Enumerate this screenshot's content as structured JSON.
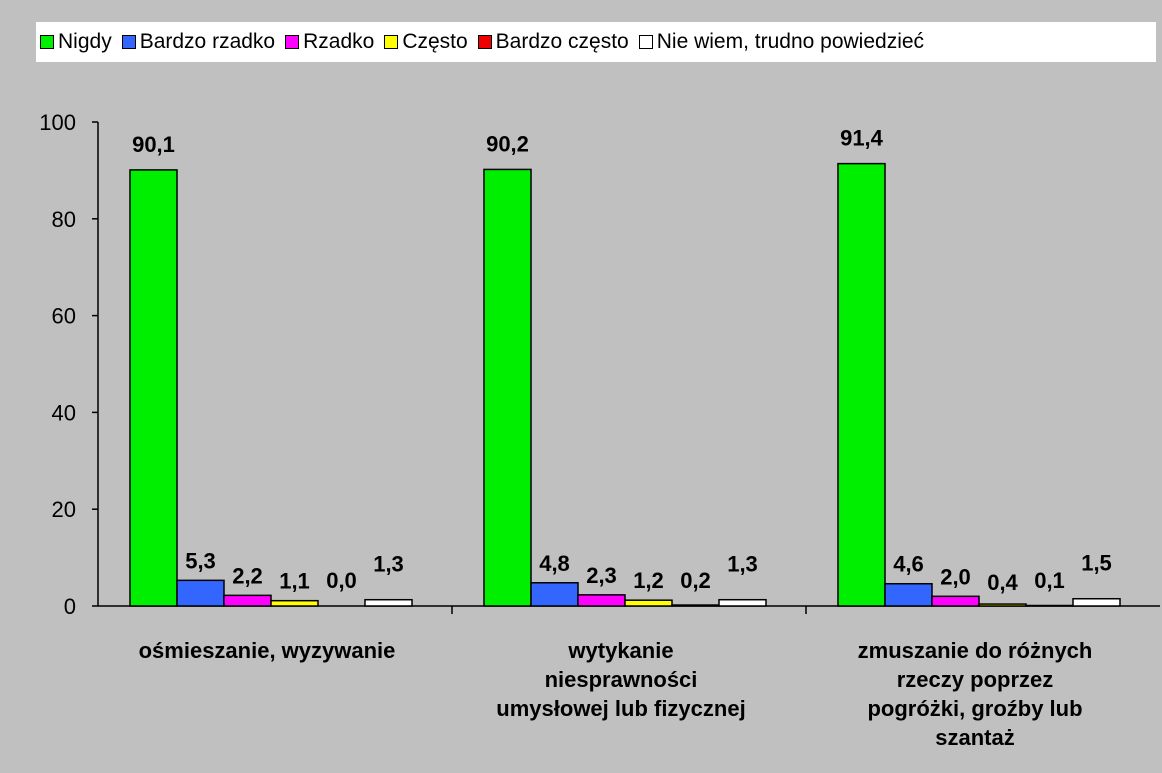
{
  "chart_data": {
    "type": "bar",
    "categories": [
      [
        "ośmieszanie, wyzywanie"
      ],
      [
        "wytykanie",
        "niesprawności",
        "umysłowej lub fizycznej"
      ],
      [
        "zmuszanie do różnych",
        "rzeczy poprzez",
        "pogróżki, groźby lub",
        "szantaż"
      ]
    ],
    "series": [
      {
        "name": "Nigdy",
        "color": "#00ee00",
        "values": [
          90.1,
          90.2,
          91.4
        ],
        "labels": [
          "90,1",
          "90,2",
          "91,4"
        ]
      },
      {
        "name": "Bardzo rzadko",
        "color": "#3366ff",
        "values": [
          5.3,
          4.8,
          4.6
        ],
        "labels": [
          "5,3",
          "4,8",
          "4,6"
        ]
      },
      {
        "name": "Rzadko",
        "color": "#ff00ff",
        "values": [
          2.2,
          2.3,
          2.0
        ],
        "labels": [
          "2,2",
          "2,3",
          "2,0"
        ]
      },
      {
        "name": "Często",
        "color": "#ffff00",
        "values": [
          1.1,
          1.2,
          0.4
        ],
        "labels": [
          "1,1",
          "1,2",
          "0,4"
        ]
      },
      {
        "name": "Bardzo często",
        "color": "#ee0000",
        "values": [
          0.0,
          0.2,
          0.1
        ],
        "labels": [
          "0,0",
          "0,2",
          "0,1"
        ]
      },
      {
        "name": "Nie wiem, trudno powiedzieć",
        "color": "#ffffff",
        "values": [
          1.3,
          1.3,
          1.5
        ],
        "labels": [
          "1,3",
          "1,3",
          "1,5"
        ]
      }
    ],
    "ylim": [
      0,
      100
    ],
    "yticks": [
      0,
      20,
      40,
      60,
      80,
      100
    ],
    "grid": false,
    "legend_position": "top"
  }
}
